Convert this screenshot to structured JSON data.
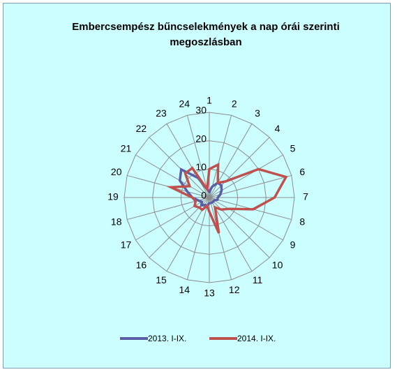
{
  "chart_data": {
    "type": "radar",
    "title": "Embercsempész bűncselekmények a nap órái szerinti megoszlásban",
    "categories": [
      "1",
      "2",
      "3",
      "4",
      "5",
      "6",
      "7",
      "8",
      "9",
      "10",
      "11",
      "12",
      "13",
      "14",
      "15",
      "16",
      "17",
      "18",
      "19",
      "20",
      "21",
      "22",
      "23",
      "24"
    ],
    "ylim": [
      0,
      30
    ],
    "yticks": [
      0,
      10,
      20,
      30
    ],
    "grid": true,
    "legend": "bottom",
    "series": [
      {
        "name": "2013. I-IX.",
        "color": "#5b5ea6",
        "values": [
          2,
          4,
          6,
          6,
          5,
          4,
          3,
          3,
          2,
          2,
          2,
          2,
          2,
          3,
          3,
          4,
          3,
          4,
          6,
          8,
          12,
          14,
          8,
          3
        ]
      },
      {
        "name": "2014. I-IX.",
        "color": "#c0504d",
        "values": [
          10,
          12,
          6,
          8,
          20,
          28,
          23,
          16,
          8,
          6,
          4,
          13,
          5,
          3,
          5,
          5,
          6,
          5,
          6,
          14,
          8,
          12,
          12,
          3
        ]
      }
    ]
  }
}
